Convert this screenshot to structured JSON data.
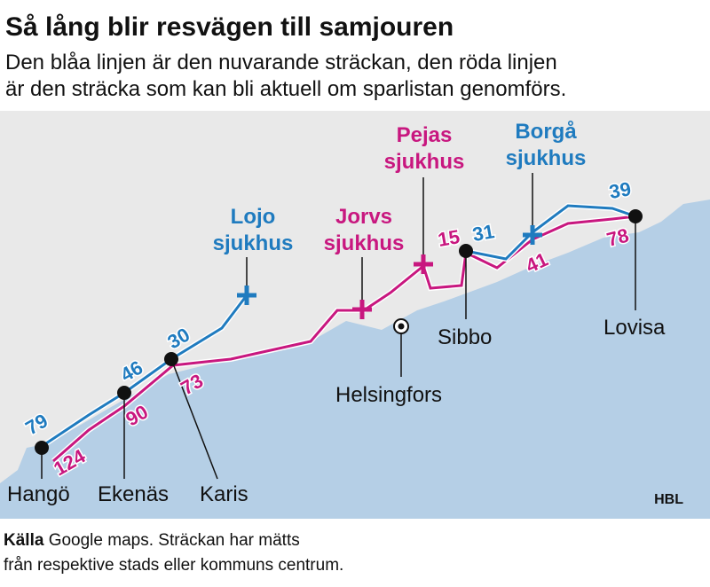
{
  "header": {
    "title": "Så lång blir resvägen till samjouren",
    "subtitle": [
      "Den blåa linjen är den nuvarande sträckan, den röda linjen",
      "är den sträcka som kan bli aktuell om sparlistan genomförs."
    ]
  },
  "hospitals": [
    {
      "lines": [
        "Lojo",
        "sjukhus"
      ],
      "color": "#1f7bbf"
    },
    {
      "lines": [
        "Jorvs",
        "sjukhus"
      ],
      "color": "#c8177f"
    },
    {
      "lines": [
        "Pejas",
        "sjukhus"
      ],
      "color": "#c8177f"
    },
    {
      "lines": [
        "Borgå",
        "sjukhus"
      ],
      "color": "#1f7bbf"
    }
  ],
  "places": [
    "Hangö",
    "Ekenäs",
    "Karis",
    "Helsingfors",
    "Sibbo",
    "Lovisa"
  ],
  "distances": [
    {
      "value": 79,
      "color": "#1f7bbf"
    },
    {
      "value": 124,
      "color": "#c8177f"
    },
    {
      "value": 46,
      "color": "#1f7bbf"
    },
    {
      "value": 90,
      "color": "#c8177f"
    },
    {
      "value": 30,
      "color": "#1f7bbf"
    },
    {
      "value": 73,
      "color": "#c8177f"
    },
    {
      "value": 15,
      "color": "#c8177f"
    },
    {
      "value": 31,
      "color": "#1f7bbf"
    },
    {
      "value": 41,
      "color": "#c8177f"
    },
    {
      "value": 39,
      "color": "#1f7bbf"
    },
    {
      "value": 78,
      "color": "#c8177f"
    }
  ],
  "credit": "HBL",
  "source": {
    "label": "Källa",
    "lines": [
      "Google maps. Sträckan har mätts",
      "från respektive stads eller kommuns centrum."
    ]
  }
}
